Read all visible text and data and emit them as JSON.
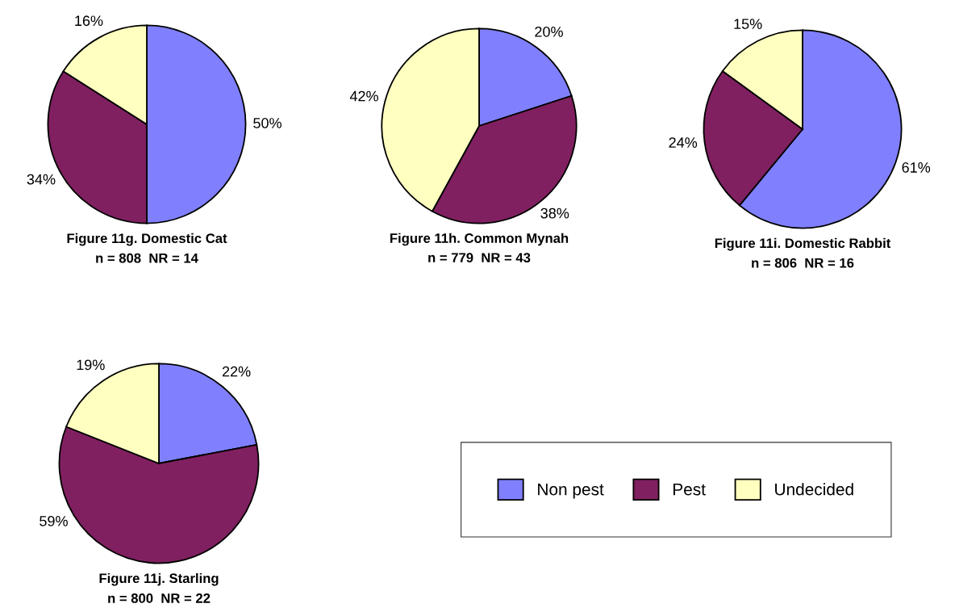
{
  "chart_data": [
    {
      "type": "pie",
      "title": "Figure 11g. Domestic Cat",
      "subtitle": "n = 808  NR = 14",
      "categories": [
        "Non pest",
        "Pest",
        "Undecided"
      ],
      "values": [
        50,
        34,
        16
      ],
      "value_labels": [
        "50%",
        "34%",
        "16%"
      ],
      "colors": [
        "#8080ff",
        "#802060",
        "#ffffc0"
      ],
      "legend": "bottom right"
    },
    {
      "type": "pie",
      "title": "Figure 11h. Common Mynah",
      "subtitle": "n = 779  NR = 43",
      "values": [
        20,
        38,
        42
      ],
      "value_labels": [
        "20%",
        "38%",
        "42%"
      ],
      "colors": [
        "#8080ff",
        "#802060",
        "#ffffc0"
      ]
    },
    {
      "type": "pie",
      "title": "Figure 11i. Domestic Rabbit",
      "subtitle": "n = 806  NR = 16",
      "values": [
        61,
        24,
        15
      ],
      "value_labels": [
        "61%",
        "24%",
        "15%"
      ],
      "colors": [
        "#8080ff",
        "#802060",
        "#ffffc0"
      ]
    },
    {
      "type": "pie",
      "title": "Figure 11j. Starling",
      "subtitle": "n = 800  NR = 22",
      "values": [
        22,
        59,
        19
      ],
      "value_labels": [
        "22%",
        "59%",
        "19%"
      ],
      "colors": [
        "#8080ff",
        "#802060",
        "#ffffc0"
      ]
    }
  ]
}
